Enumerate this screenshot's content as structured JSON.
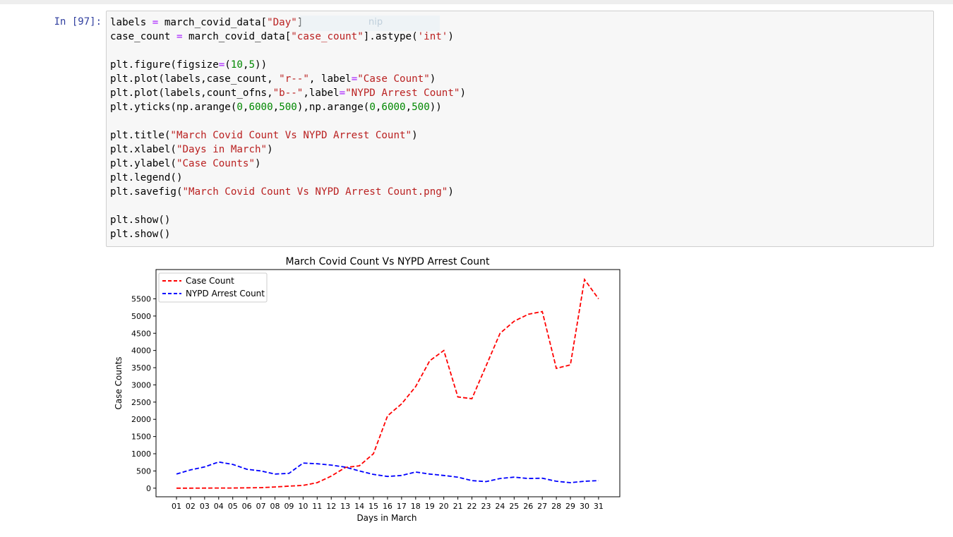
{
  "cell": {
    "prompt": "In [97]:",
    "overlay_text": "nip",
    "code_lines": [
      [
        {
          "t": "labels "
        },
        {
          "t": "=",
          "c": "o"
        },
        {
          "t": " march_covid_data["
        },
        {
          "t": "\"Day\"",
          "c": "s"
        },
        {
          "t": "]"
        }
      ],
      [
        {
          "t": "case_count "
        },
        {
          "t": "=",
          "c": "o"
        },
        {
          "t": " march_covid_data["
        },
        {
          "t": "\"case_count\"",
          "c": "s"
        },
        {
          "t": "].astype("
        },
        {
          "t": "'int'",
          "c": "s"
        },
        {
          "t": ")"
        }
      ],
      [],
      [
        {
          "t": "plt.figure(figsize"
        },
        {
          "t": "=",
          "c": "o"
        },
        {
          "t": "("
        },
        {
          "t": "10",
          "c": "n"
        },
        {
          "t": ","
        },
        {
          "t": "5",
          "c": "n"
        },
        {
          "t": "))"
        }
      ],
      [
        {
          "t": "plt.plot(labels,case_count, "
        },
        {
          "t": "\"r--\"",
          "c": "s"
        },
        {
          "t": ", label"
        },
        {
          "t": "=",
          "c": "o"
        },
        {
          "t": "\"Case Count\"",
          "c": "s"
        },
        {
          "t": ")"
        }
      ],
      [
        {
          "t": "plt.plot(labels,count_ofns,"
        },
        {
          "t": "\"b--\"",
          "c": "s"
        },
        {
          "t": ",label"
        },
        {
          "t": "=",
          "c": "o"
        },
        {
          "t": "\"NYPD Arrest Count\"",
          "c": "s"
        },
        {
          "t": ")"
        }
      ],
      [
        {
          "t": "plt.yticks(np.arange("
        },
        {
          "t": "0",
          "c": "n"
        },
        {
          "t": ","
        },
        {
          "t": "6000",
          "c": "n"
        },
        {
          "t": ","
        },
        {
          "t": "500",
          "c": "n"
        },
        {
          "t": "),np.arange("
        },
        {
          "t": "0",
          "c": "n"
        },
        {
          "t": ","
        },
        {
          "t": "6000",
          "c": "n"
        },
        {
          "t": ","
        },
        {
          "t": "500",
          "c": "n"
        },
        {
          "t": "))"
        }
      ],
      [],
      [
        {
          "t": "plt.title("
        },
        {
          "t": "\"March Covid Count Vs NYPD Arrest Count\"",
          "c": "s"
        },
        {
          "t": ")"
        }
      ],
      [
        {
          "t": "plt.xlabel("
        },
        {
          "t": "\"Days in March\"",
          "c": "s"
        },
        {
          "t": ")"
        }
      ],
      [
        {
          "t": "plt.ylabel("
        },
        {
          "t": "\"Case Counts\"",
          "c": "s"
        },
        {
          "t": ")"
        }
      ],
      [
        {
          "t": "plt.legend()"
        }
      ],
      [
        {
          "t": "plt.savefig("
        },
        {
          "t": "\"March Covid Count Vs NYPD Arrest Count.png\"",
          "c": "s"
        },
        {
          "t": ")"
        }
      ],
      [],
      [
        {
          "t": "plt.show()"
        }
      ],
      [
        {
          "t": "plt.show()"
        }
      ]
    ]
  },
  "colors": {
    "case_series": "#ff0000",
    "arrest_series": "#0000ff",
    "prompt": "#303f9f",
    "cell_bg": "#f7f7f7"
  },
  "chart_data": {
    "type": "line",
    "title": "March Covid Count Vs NYPD Arrest Count",
    "xlabel": "Days in March",
    "ylabel": "Case Counts",
    "categories": [
      "01",
      "02",
      "03",
      "04",
      "05",
      "06",
      "07",
      "08",
      "09",
      "10",
      "11",
      "12",
      "13",
      "14",
      "15",
      "16",
      "17",
      "18",
      "19",
      "20",
      "21",
      "22",
      "23",
      "24",
      "25",
      "26",
      "27",
      "28",
      "29",
      "30",
      "31"
    ],
    "yticks": [
      0,
      500,
      1000,
      1500,
      2000,
      2500,
      3000,
      3500,
      4000,
      4500,
      5000,
      5500
    ],
    "ylim": [
      -250,
      6350
    ],
    "legend": "upper-left",
    "grid": false,
    "series": [
      {
        "name": "Case Count",
        "style": "r--",
        "values": [
          0,
          0,
          3,
          5,
          5,
          10,
          15,
          35,
          60,
          80,
          160,
          350,
          600,
          650,
          1000,
          2100,
          2450,
          2950,
          3700,
          4000,
          2650,
          2600,
          3550,
          4500,
          4850,
          5050,
          5130,
          3480,
          3580,
          6060,
          5500
        ]
      },
      {
        "name": "NYPD Arrest Count",
        "style": "b--",
        "values": [
          410,
          530,
          620,
          760,
          690,
          550,
          500,
          410,
          430,
          730,
          710,
          670,
          610,
          500,
          400,
          340,
          370,
          470,
          410,
          370,
          320,
          220,
          190,
          280,
          320,
          280,
          290,
          200,
          160,
          200,
          220
        ]
      }
    ]
  }
}
